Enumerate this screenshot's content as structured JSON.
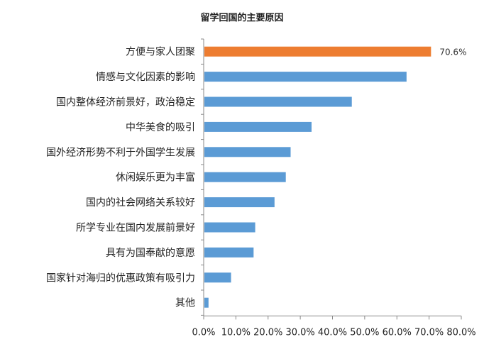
{
  "chart_data": {
    "type": "bar",
    "orientation": "horizontal",
    "title": "留学回国的主要原因",
    "categories": [
      "方便与家人团聚",
      "情感与文化因素的影响",
      "国内整体经济前景好，政治稳定",
      "中华美食的吸引",
      "国外经济形势不利于外国学生发展",
      "休闲娱乐更为丰富",
      "国内的社会网络关系较好",
      "所学专业在国内发展前景好",
      "具有为国奉献的意愿",
      "国家针对海归的优惠政策有吸引力",
      "其他"
    ],
    "values": [
      70.6,
      63.0,
      46.0,
      33.5,
      27.0,
      25.5,
      22.0,
      16.0,
      15.5,
      8.5,
      1.5
    ],
    "highlight_index": 0,
    "data_labels": [
      {
        "index": 0,
        "text": "70.6%"
      }
    ],
    "xlim": [
      0,
      80
    ],
    "xticks": [
      0,
      10,
      20,
      30,
      40,
      50,
      60,
      70,
      80
    ],
    "xtick_labels": [
      "0.0%",
      "10.0%",
      "20.0%",
      "30.0%",
      "40.0%",
      "50.0%",
      "60.0%",
      "70.0%",
      "80.0%"
    ],
    "xlabel": "",
    "ylabel": "",
    "grid": false,
    "legend": "none",
    "colors": {
      "bar": "#5b9bd5",
      "highlight": "#ed7d31",
      "axis": "#888888",
      "text": "#222222"
    }
  }
}
